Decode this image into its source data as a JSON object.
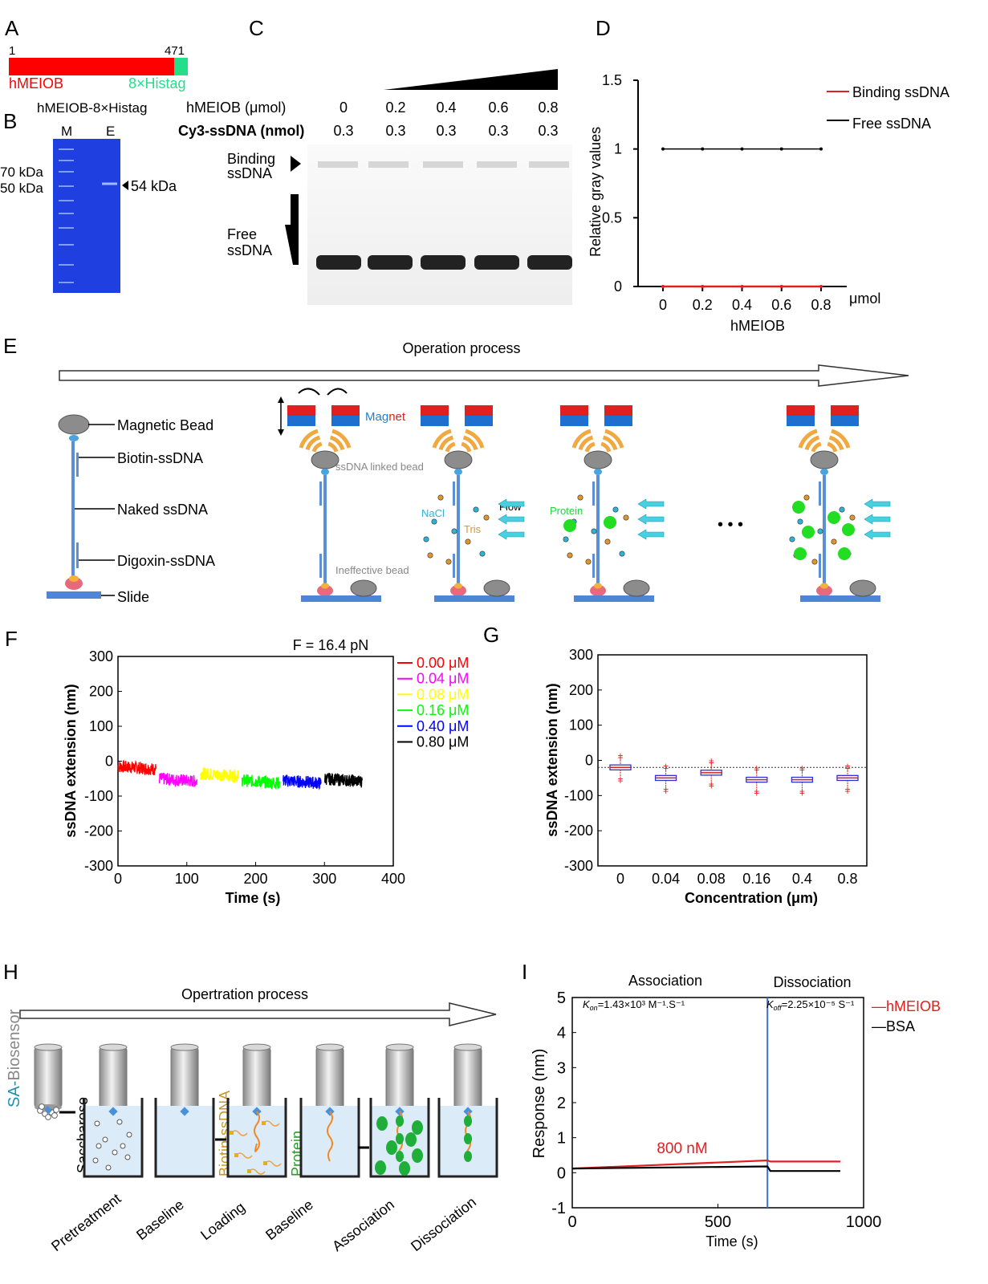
{
  "panel_letters": [
    "A",
    "B",
    "C",
    "D",
    "E",
    "F",
    "G",
    "H",
    "I"
  ],
  "A": {
    "start": "1",
    "end": "471",
    "protein": "hMEIOB",
    "tag": "8×Histag",
    "protein_color": "#ff0000",
    "tag_color": "#22e08a"
  },
  "B": {
    "title": "hMEIOB-8×Histag",
    "lanes": [
      "M",
      "E"
    ],
    "markers": [
      "70 kDa",
      "50 kDa"
    ],
    "band": "54 kDa",
    "gel_color": "#1f3fe0"
  },
  "C": {
    "row1_label": "hMEIOB (μmol)",
    "row1": [
      "0",
      "0.2",
      "0.4",
      "0.6",
      "0.8"
    ],
    "row2_label": "Cy3-ssDNA (nmol)",
    "row2": [
      "0.3",
      "0.3",
      "0.3",
      "0.3",
      "0.3"
    ],
    "binding": [
      "Binding",
      "ssDNA"
    ],
    "free": [
      "Free",
      "ssDNA"
    ]
  },
  "chart_data": [
    {
      "panel": "D",
      "type": "line",
      "x": [
        0,
        0.2,
        0.4,
        0.6,
        0.8
      ],
      "series": [
        {
          "name": "Binding ssDNA",
          "color": "#e02020",
          "values": [
            0,
            0,
            0,
            0,
            0
          ]
        },
        {
          "name": "Free ssDNA",
          "color": "#000000",
          "values": [
            1,
            1,
            1,
            1,
            1
          ]
        }
      ],
      "ylabel": "Relative gray values",
      "xlabel": "hMEIOB",
      "xunit": "μmol",
      "ylim": [
        0,
        1.5
      ],
      "yticks": [
        "0",
        "0.5",
        "1",
        "1.5"
      ],
      "xticks": [
        "0",
        "0.2",
        "0.4",
        "0.6",
        "0.8"
      ],
      "legend": "top-right"
    },
    {
      "panel": "F",
      "type": "line",
      "title": "F = 16.4 pN",
      "xlabel": "Time (s)",
      "ylabel": "ssDNA extension (nm)",
      "xlim": [
        0,
        400
      ],
      "ylim": [
        -300,
        300
      ],
      "xticks": [
        "0",
        "100",
        "200",
        "300",
        "400"
      ],
      "yticks": [
        "300",
        "200",
        "100",
        "0",
        "-100",
        "-200",
        "-300"
      ],
      "series": [
        {
          "name": "0.00 μM",
          "color": "#ff0000",
          "x_range": [
            0,
            55
          ],
          "level": -15
        },
        {
          "name": "0.04 μM",
          "color": "#ff00ff",
          "x_range": [
            60,
            115
          ],
          "level": -50
        },
        {
          "name": "0.08 μM",
          "color": "#ffff00",
          "x_range": [
            120,
            175
          ],
          "level": -35
        },
        {
          "name": "0.16 μM",
          "color": "#00ff00",
          "x_range": [
            180,
            235
          ],
          "level": -55
        },
        {
          "name": "0.40 μM",
          "color": "#0000ff",
          "x_range": [
            240,
            295
          ],
          "level": -55
        },
        {
          "name": "0.80 μM",
          "color": "#000000",
          "x_range": [
            300,
            355
          ],
          "level": -50
        }
      ],
      "legend": "right"
    },
    {
      "panel": "G",
      "type": "box",
      "xlabel": "Concentration (μm)",
      "ylabel": "ssDNA extension (nm)",
      "ylim": [
        -300,
        300
      ],
      "yticks": [
        "300",
        "200",
        "100",
        "0",
        "-100",
        "-200",
        "-300"
      ],
      "categories": [
        "0",
        "0.04",
        "0.08",
        "0.16",
        "0.4",
        "0.8"
      ],
      "medians": [
        -20,
        -50,
        -35,
        -55,
        -55,
        -50
      ],
      "reference_line": -20
    },
    {
      "panel": "I",
      "type": "line",
      "xlabel": "Time (s)",
      "ylabel": "Response (nm)",
      "xlim": [
        0,
        1000
      ],
      "ylim": [
        -1,
        5
      ],
      "xticks": [
        "0",
        "500",
        "1000"
      ],
      "yticks": [
        "5",
        "4",
        "3",
        "2",
        "1",
        "0",
        "-1"
      ],
      "phases": [
        "Association",
        "Dissociation"
      ],
      "phase_switch": 670,
      "kon": "=1.43×10³ M⁻¹.S⁻¹",
      "koff": "=2.25×10⁻⁵ S⁻¹",
      "annotation": "800 nM",
      "series": [
        {
          "name": "hMEIOB",
          "color": "#e02020",
          "points": [
            [
              0,
              0.12
            ],
            [
              670,
              0.35
            ],
            [
              680,
              0.32
            ],
            [
              920,
              0.32
            ]
          ]
        },
        {
          "name": "BSA",
          "color": "#000000",
          "points": [
            [
              0,
              0.12
            ],
            [
              670,
              0.18
            ],
            [
              680,
              0.05
            ],
            [
              920,
              0.05
            ]
          ]
        }
      ],
      "legend": "right"
    }
  ],
  "E": {
    "title": "Operation process",
    "labels": [
      "Magnetic Bead",
      "Biotin-ssDNA",
      "Naked ssDNA",
      "Digoxin-ssDNA",
      "Slide"
    ],
    "magnet_text": [
      "Mag",
      "net"
    ],
    "linked": "ssDNA linked bead",
    "ineffective": "Ineffective bead",
    "flow": "Flow",
    "nacl": "NaCl",
    "tris": "Tris",
    "protein": "Protein",
    "ellipsis": "• • •"
  },
  "H": {
    "title": "Opertration process",
    "sensor": [
      "SA-",
      "Biosensor"
    ],
    "vertical": [
      "Saccharose",
      "Biotin-ssDNA",
      "Protein"
    ],
    "steps": [
      "Pretreatment",
      "Baseline",
      "Loading",
      "Baseline",
      "Association",
      "Dissociation"
    ]
  },
  "I_legend": {
    "hmeiob": "—hMEIOB",
    "bsa": "—BSA"
  }
}
